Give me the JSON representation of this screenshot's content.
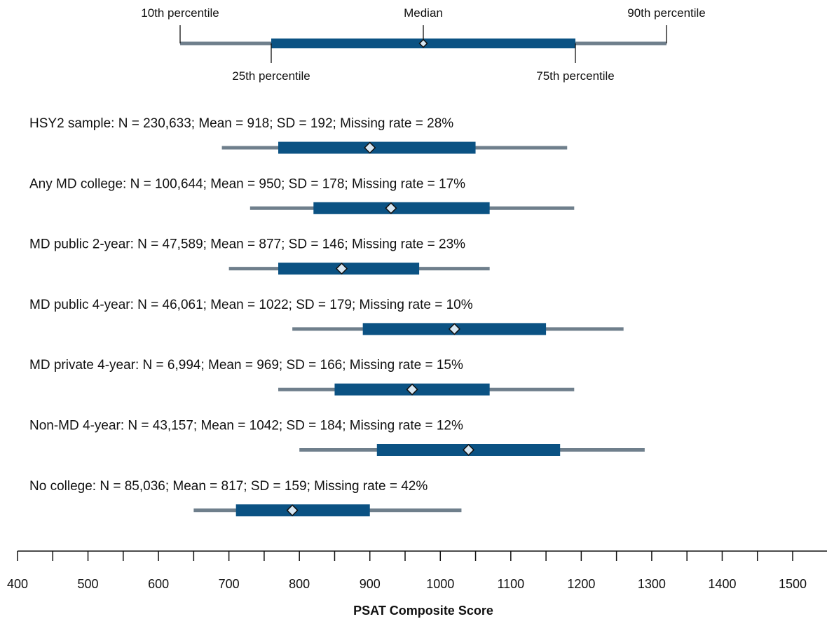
{
  "colors": {
    "whisker": "#6f7f8c",
    "box": "#0b5283",
    "median_marker": "#d6e6f2",
    "axis": "#111111"
  },
  "chart_data": {
    "type": "boxplot",
    "xlabel": "PSAT Composite Score",
    "xlim": [
      400,
      1550
    ],
    "major_ticks": [
      400,
      500,
      600,
      700,
      800,
      900,
      1000,
      1100,
      1200,
      1300,
      1400,
      1500
    ],
    "minor_tick_step": 50,
    "legend": {
      "p10_label": "10th percentile",
      "p25_label": "25th percentile",
      "median_label": "Median",
      "p75_label": "75th percentile",
      "p90_label": "90th percentile"
    },
    "series": [
      {
        "label": "HSY2 sample: N = 230,633; Mean = 918; SD = 192; Missing rate = 28%",
        "p10": 690,
        "p25": 770,
        "median": 900,
        "p75": 1050,
        "p90": 1180
      },
      {
        "label": "Any MD college: N = 100,644; Mean = 950; SD = 178; Missing rate = 17%",
        "p10": 730,
        "p25": 820,
        "median": 930,
        "p75": 1070,
        "p90": 1190
      },
      {
        "label": "MD public 2-year: N = 47,589; Mean = 877; SD = 146; Missing rate = 23%",
        "p10": 700,
        "p25": 770,
        "median": 860,
        "p75": 970,
        "p90": 1070
      },
      {
        "label": "MD public 4-year: N = 46,061; Mean = 1022; SD = 179; Missing rate = 10%",
        "p10": 790,
        "p25": 890,
        "median": 1020,
        "p75": 1150,
        "p90": 1260
      },
      {
        "label": "MD private 4-year: N = 6,994; Mean = 969; SD = 166; Missing rate = 15%",
        "p10": 770,
        "p25": 850,
        "median": 960,
        "p75": 1070,
        "p90": 1190
      },
      {
        "label": "Non-MD 4-year: N = 43,157; Mean = 1042; SD = 184; Missing rate = 12%",
        "p10": 800,
        "p25": 910,
        "median": 1040,
        "p75": 1170,
        "p90": 1290
      },
      {
        "label": "No college: N = 85,036; Mean = 817; SD = 159; Missing rate = 42%",
        "p10": 650,
        "p25": 710,
        "median": 790,
        "p75": 900,
        "p90": 1030
      }
    ]
  }
}
